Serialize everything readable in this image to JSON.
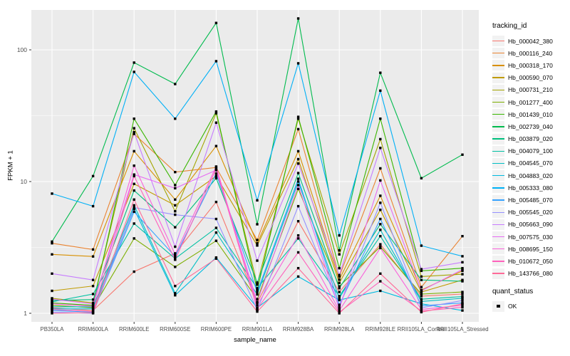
{
  "colors": {
    "page_bg": "#FFFFFF",
    "panel_bg": "#EBEBEB",
    "grid": "#FFFFFF",
    "axis_text": "#4D4D4D",
    "tick_mark": "#333333",
    "title_text": "#000000",
    "legend_key_bg": "#F2F2F2",
    "point": "#000000"
  },
  "chart_data": {
    "type": "line",
    "title": "",
    "xlabel": "sample_name",
    "ylabel": "FPKM + 1",
    "y_scale": "log10",
    "y_ticks": [
      1,
      10,
      100
    ],
    "y_minor_ticks": [
      3.1623,
      31.623
    ],
    "ylim": [
      0.86,
      200
    ],
    "grid": true,
    "legend_position": "right",
    "legend_title": "tracking_id",
    "point_marker": "filled-square",
    "categories": [
      "PB350LA",
      "RRIM600LA",
      "RRIM600LE",
      "RRIM600SE",
      "RRIM600PE",
      "RRIM901LA",
      "RRIM928BA",
      "RRIM928LA",
      "RRIM928LE",
      "RRII105LA_Control",
      "RRII105LA_Stressed"
    ],
    "series": [
      {
        "name": "Hb_000042_380",
        "color": "#F8766D",
        "values": [
          1.1,
          1.05,
          2.07,
          2.85,
          7.0,
          1.2,
          5.0,
          1.45,
          3.34,
          1.35,
          1.4
        ]
      },
      {
        "name": "Hb_000116_240",
        "color": "#EA8331",
        "values": [
          3.4,
          3.05,
          23.0,
          11.8,
          12.8,
          3.6,
          25.0,
          1.9,
          12.6,
          1.58,
          3.85
        ]
      },
      {
        "name": "Hb_000318_170",
        "color": "#D89000",
        "values": [
          2.8,
          2.7,
          17.0,
          7.3,
          18.6,
          3.4,
          17.0,
          1.8,
          7.8,
          1.5,
          2.1
        ]
      },
      {
        "name": "Hb_000590_070",
        "color": "#C09B00",
        "values": [
          1.48,
          1.61,
          9.6,
          6.6,
          11.0,
          3.27,
          14.8,
          1.7,
          6.1,
          1.45,
          1.79
        ]
      },
      {
        "name": "Hb_000731_210",
        "color": "#A3A500",
        "values": [
          1.3,
          1.2,
          25.4,
          5.95,
          33.0,
          1.65,
          30.0,
          2.8,
          21.0,
          1.9,
          1.98
        ]
      },
      {
        "name": "Hb_001277_400",
        "color": "#7CAE00",
        "values": [
          1.15,
          1.1,
          3.7,
          2.25,
          3.55,
          1.28,
          8.8,
          1.6,
          3.2,
          1.4,
          1.45
        ]
      },
      {
        "name": "Hb_001439_010",
        "color": "#39B600",
        "values": [
          1.2,
          1.15,
          30.0,
          9.4,
          34.0,
          1.5,
          31.0,
          2.2,
          30.0,
          2.1,
          2.2
        ]
      },
      {
        "name": "Hb_002739_040",
        "color": "#00BB4E",
        "values": [
          3.5,
          11.0,
          80.0,
          55.0,
          160.0,
          4.74,
          173.0,
          3.0,
          67.0,
          10.6,
          16.0
        ]
      },
      {
        "name": "Hb_003879_020",
        "color": "#00BF7D",
        "values": [
          1.25,
          1.27,
          8.55,
          4.5,
          10.6,
          1.71,
          11.6,
          1.55,
          4.75,
          1.79,
          1.75
        ]
      },
      {
        "name": "Hb_004079_100",
        "color": "#00C1A3",
        "values": [
          1.22,
          1.4,
          4.8,
          2.6,
          4.45,
          1.55,
          3.7,
          1.35,
          3.85,
          1.28,
          1.34
        ]
      },
      {
        "name": "Hb_004545_070",
        "color": "#00BFC4",
        "values": [
          1.12,
          1.12,
          6.6,
          1.42,
          4.1,
          1.39,
          10.0,
          1.3,
          4.3,
          1.23,
          1.3
        ]
      },
      {
        "name": "Hb_004883_020",
        "color": "#00BAE0",
        "values": [
          1.08,
          1.08,
          6.2,
          1.37,
          2.65,
          1.1,
          1.9,
          1.26,
          1.48,
          1.18,
          1.05
        ]
      },
      {
        "name": "Hb_005333_080",
        "color": "#00B0F6",
        "values": [
          8.1,
          6.5,
          68.0,
          30.0,
          82.0,
          7.2,
          79.0,
          3.9,
          49.0,
          3.26,
          2.71
        ]
      },
      {
        "name": "Hb_005485_070",
        "color": "#35A2FF",
        "values": [
          1.05,
          1.02,
          5.9,
          2.7,
          11.5,
          1.45,
          10.5,
          1.16,
          5.2,
          1.14,
          1.2
        ]
      },
      {
        "name": "Hb_005545_020",
        "color": "#9590FF",
        "values": [
          1.02,
          1.0,
          6.35,
          5.6,
          5.2,
          1.06,
          6.5,
          1.12,
          6.9,
          1.1,
          1.25
        ]
      },
      {
        "name": "Hb_005663_090",
        "color": "#C77CFF",
        "values": [
          2.0,
          1.79,
          23.7,
          3.2,
          28.0,
          2.51,
          13.7,
          1.95,
          18.0,
          2.16,
          2.44
        ]
      },
      {
        "name": "Hb_007575_030",
        "color": "#E76BF3",
        "values": [
          1.28,
          1.18,
          11.3,
          8.9,
          12.2,
          1.22,
          9.4,
          1.08,
          10.2,
          1.48,
          2.15
        ]
      },
      {
        "name": "Hb_008695_150",
        "color": "#FA62DB",
        "values": [
          1.18,
          1.13,
          13.2,
          2.8,
          13.0,
          1.15,
          3.9,
          1.05,
          3.13,
          1.07,
          1.15
        ]
      },
      {
        "name": "Hb_010672_050",
        "color": "#FF62BC",
        "values": [
          1.07,
          1.03,
          11.0,
          2.55,
          12.5,
          1.08,
          2.9,
          1.02,
          1.75,
          1.04,
          1.11
        ]
      },
      {
        "name": "Hb_143766_080",
        "color": "#FF6A98",
        "values": [
          1.0,
          1.01,
          7.3,
          1.61,
          2.6,
          1.03,
          2.2,
          1.0,
          2.0,
          1.02,
          1.18
        ]
      }
    ],
    "quant_status": {
      "title": "quant_status",
      "items": [
        {
          "label": "OK",
          "marker": "filled-square",
          "color": "#000000"
        }
      ]
    }
  }
}
